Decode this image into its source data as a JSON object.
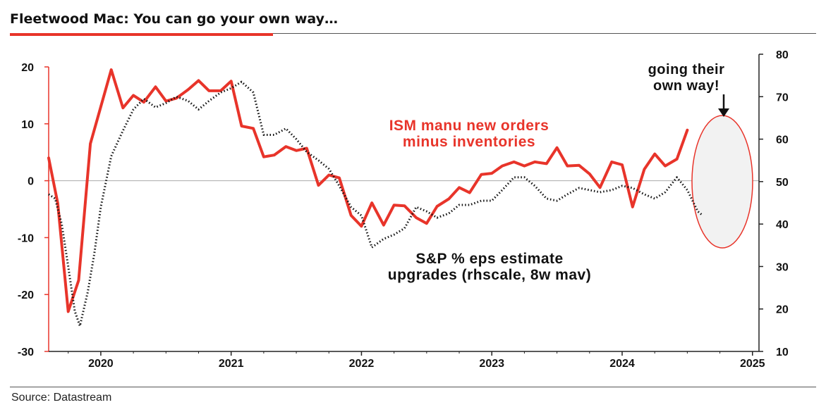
{
  "title": "Fleetwood Mac: You can go your own way…",
  "source": "Source: Datastream",
  "chart_data": {
    "type": "line",
    "left_axis": {
      "ticks": [
        20,
        10,
        0,
        -10,
        -20,
        -30
      ],
      "ylim": [
        -30,
        22
      ]
    },
    "right_axis": {
      "ticks": [
        80,
        70,
        60,
        50,
        40,
        30,
        20,
        10
      ],
      "ylim": [
        10,
        80
      ]
    },
    "x_ticks": [
      "2020",
      "2021",
      "2022",
      "2023",
      "2024",
      "2025"
    ],
    "x_tick_values": [
      2020.0,
      2021.0,
      2022.0,
      2023.0,
      2024.0,
      2025.0
    ],
    "xlim": [
      2019.6,
      2025.05
    ],
    "series": [
      {
        "name": "ISM manu new orders minus inventories",
        "axis": "left",
        "color": "#e8342a",
        "points": [
          [
            2019.6,
            4
          ],
          [
            2019.67,
            -4
          ],
          [
            2019.75,
            -23
          ],
          [
            2019.83,
            -17.5
          ],
          [
            2019.92,
            6.5
          ],
          [
            2020.0,
            13
          ],
          [
            2020.08,
            19.5
          ],
          [
            2020.17,
            12.8
          ],
          [
            2020.25,
            15
          ],
          [
            2020.33,
            13.8
          ],
          [
            2020.42,
            16.5
          ],
          [
            2020.5,
            14
          ],
          [
            2020.58,
            14.5
          ],
          [
            2020.67,
            16
          ],
          [
            2020.75,
            17.6
          ],
          [
            2020.83,
            15.8
          ],
          [
            2020.92,
            15.8
          ],
          [
            2021.0,
            17.5
          ],
          [
            2021.08,
            9.6
          ],
          [
            2021.17,
            9.2
          ],
          [
            2021.25,
            4.2
          ],
          [
            2021.33,
            4.5
          ],
          [
            2021.42,
            6
          ],
          [
            2021.5,
            5.3
          ],
          [
            2021.58,
            5.7
          ],
          [
            2021.67,
            -0.8
          ],
          [
            2021.75,
            1
          ],
          [
            2021.83,
            0.5
          ],
          [
            2021.92,
            -6.1
          ],
          [
            2022.0,
            -8
          ],
          [
            2022.08,
            -3.9
          ],
          [
            2022.17,
            -7.8
          ],
          [
            2022.25,
            -4.3
          ],
          [
            2022.33,
            -4.4
          ],
          [
            2022.42,
            -6.5
          ],
          [
            2022.5,
            -7.5
          ],
          [
            2022.58,
            -4.5
          ],
          [
            2022.67,
            -3.2
          ],
          [
            2022.75,
            -1.2
          ],
          [
            2022.83,
            -2.1
          ],
          [
            2022.92,
            1.1
          ],
          [
            2023.0,
            1.3
          ],
          [
            2023.08,
            2.6
          ],
          [
            2023.17,
            3.3
          ],
          [
            2023.25,
            2.6
          ],
          [
            2023.33,
            3.3
          ],
          [
            2023.42,
            3
          ],
          [
            2023.5,
            5.8
          ],
          [
            2023.58,
            2.6
          ],
          [
            2023.67,
            2.7
          ],
          [
            2023.75,
            1.2
          ],
          [
            2023.83,
            -1.2
          ],
          [
            2023.92,
            3.3
          ],
          [
            2024.0,
            2.8
          ],
          [
            2024.08,
            -4.6
          ],
          [
            2024.17,
            2
          ],
          [
            2024.25,
            4.7
          ],
          [
            2024.33,
            2.6
          ],
          [
            2024.42,
            3.8
          ],
          [
            2024.5,
            8.9
          ]
        ]
      },
      {
        "name": "S&P % eps estimate upgrades (rhscale, 8w mav)",
        "axis": "right",
        "color": "#111111",
        "points": [
          [
            2019.6,
            47
          ],
          [
            2019.65,
            46
          ],
          [
            2019.7,
            40
          ],
          [
            2019.75,
            30
          ],
          [
            2019.8,
            19.5
          ],
          [
            2019.84,
            16
          ],
          [
            2019.9,
            24
          ],
          [
            2019.95,
            33
          ],
          [
            2020.0,
            44
          ],
          [
            2020.08,
            56
          ],
          [
            2020.17,
            62
          ],
          [
            2020.25,
            67
          ],
          [
            2020.33,
            69.5
          ],
          [
            2020.42,
            67.5
          ],
          [
            2020.5,
            68.5
          ],
          [
            2020.58,
            70
          ],
          [
            2020.67,
            69
          ],
          [
            2020.75,
            67
          ],
          [
            2020.83,
            69
          ],
          [
            2020.92,
            71
          ],
          [
            2021.0,
            72
          ],
          [
            2021.08,
            73.5
          ],
          [
            2021.17,
            71
          ],
          [
            2021.25,
            61
          ],
          [
            2021.33,
            61
          ],
          [
            2021.42,
            62.5
          ],
          [
            2021.5,
            60
          ],
          [
            2021.58,
            57
          ],
          [
            2021.67,
            55
          ],
          [
            2021.75,
            53
          ],
          [
            2021.83,
            49
          ],
          [
            2021.92,
            44
          ],
          [
            2022.0,
            42
          ],
          [
            2022.08,
            34.5
          ],
          [
            2022.17,
            36.5
          ],
          [
            2022.25,
            37.5
          ],
          [
            2022.33,
            39
          ],
          [
            2022.42,
            44
          ],
          [
            2022.5,
            43
          ],
          [
            2022.58,
            41.5
          ],
          [
            2022.67,
            42.5
          ],
          [
            2022.75,
            44.5
          ],
          [
            2022.83,
            44.5
          ],
          [
            2022.92,
            45.5
          ],
          [
            2023.0,
            45.5
          ],
          [
            2023.08,
            48
          ],
          [
            2023.17,
            51
          ],
          [
            2023.25,
            51
          ],
          [
            2023.33,
            49
          ],
          [
            2023.42,
            46
          ],
          [
            2023.5,
            45.5
          ],
          [
            2023.58,
            47
          ],
          [
            2023.67,
            48.5
          ],
          [
            2023.75,
            48
          ],
          [
            2023.83,
            47.5
          ],
          [
            2023.92,
            48
          ],
          [
            2024.0,
            49
          ],
          [
            2024.08,
            48.5
          ],
          [
            2024.17,
            47
          ],
          [
            2024.25,
            46
          ],
          [
            2024.33,
            47.5
          ],
          [
            2024.42,
            51
          ],
          [
            2024.5,
            48
          ],
          [
            2024.58,
            43
          ],
          [
            2024.62,
            42
          ]
        ]
      }
    ],
    "annotations": {
      "red_label": [
        "ISM manu new orders",
        "minus inventories"
      ],
      "black_label": [
        "S&P % eps estimate",
        "upgrades (rhscale, 8w mav)"
      ],
      "callout": [
        "going their",
        "own way!"
      ]
    },
    "colors": {
      "accent": "#e8342a",
      "ellipse_fill": "#f2f2f2",
      "zero_line": "#aaaaaa"
    }
  }
}
